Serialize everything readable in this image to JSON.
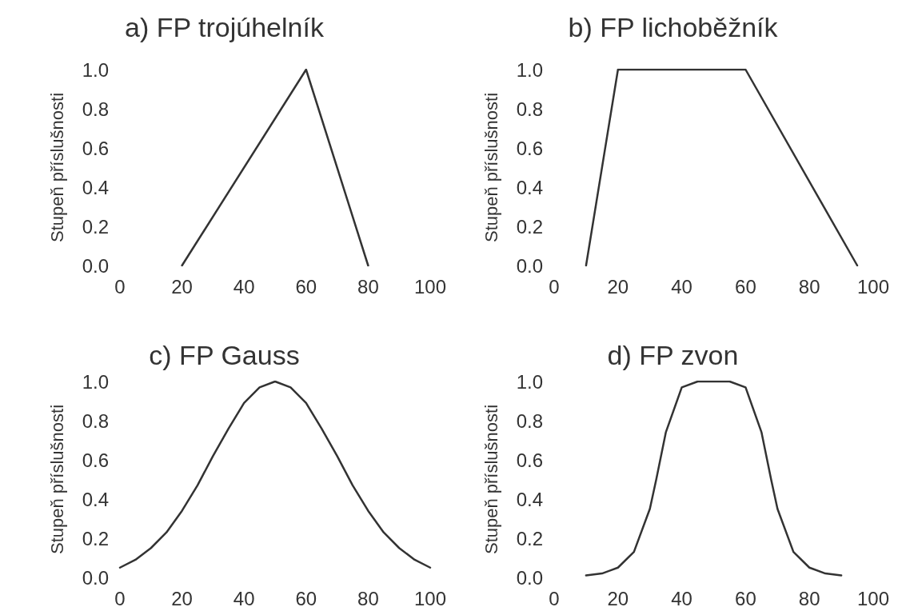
{
  "chart_data": [
    {
      "type": "line",
      "title": "a) FP trojúhelník",
      "ylabel": "Stupeň příslušnosti",
      "xlim": [
        0,
        100
      ],
      "xticks": [
        0,
        20,
        40,
        60,
        80,
        100
      ],
      "ylim": [
        0,
        1
      ],
      "yticks": [
        {
          "value": 0,
          "label": "0.0"
        },
        {
          "value": 0.2,
          "label": "0.2"
        },
        {
          "value": 0.4,
          "label": "0.4"
        },
        {
          "value": 0.6,
          "label": "0.6"
        },
        {
          "value": 0.8,
          "label": "0.8"
        },
        {
          "value": 1,
          "label": "1.0"
        }
      ],
      "grid": false,
      "marker": "none",
      "line_style": "solid",
      "series": [
        {
          "color": "#333333",
          "x": [
            20,
            60,
            80
          ],
          "values": [
            0,
            1,
            0
          ]
        }
      ]
    },
    {
      "type": "line",
      "title": "b) FP lichoběžník",
      "ylabel": "Stupeň příslušnosti",
      "xlim": [
        0,
        100
      ],
      "xticks": [
        0,
        20,
        40,
        60,
        80,
        100
      ],
      "ylim": [
        0,
        1
      ],
      "yticks": [
        {
          "value": 0,
          "label": "0.0"
        },
        {
          "value": 0.2,
          "label": "0.2"
        },
        {
          "value": 0.4,
          "label": "0.4"
        },
        {
          "value": 0.6,
          "label": "0.6"
        },
        {
          "value": 0.8,
          "label": "0.8"
        },
        {
          "value": 1,
          "label": "1.0"
        }
      ],
      "grid": false,
      "marker": "none",
      "line_style": "solid",
      "series": [
        {
          "color": "#333333",
          "x": [
            10,
            20,
            60,
            95
          ],
          "values": [
            0,
            1,
            1,
            0
          ]
        }
      ]
    },
    {
      "type": "line",
      "title": "c) FP Gauss",
      "ylabel": "Stupeň příslušnosti",
      "xlim": [
        0,
        100
      ],
      "xticks": [
        0,
        20,
        40,
        60,
        80,
        100
      ],
      "ylim": [
        0,
        1
      ],
      "yticks": [
        {
          "value": 0,
          "label": "0.0"
        },
        {
          "value": 0.2,
          "label": "0.2"
        },
        {
          "value": 0.4,
          "label": "0.4"
        },
        {
          "value": 0.6,
          "label": "0.6"
        },
        {
          "value": 0.8,
          "label": "0.8"
        },
        {
          "value": 1,
          "label": "1.0"
        }
      ],
      "grid": false,
      "marker": "none",
      "line_style": "solid",
      "series": [
        {
          "color": "#333333",
          "x": [
            0,
            5,
            10,
            15,
            20,
            25,
            30,
            35,
            40,
            45,
            50,
            55,
            60,
            65,
            70,
            75,
            80,
            85,
            90,
            95,
            100
          ],
          "values": [
            0.05,
            0.09,
            0.15,
            0.23,
            0.34,
            0.47,
            0.62,
            0.76,
            0.89,
            0.97,
            1,
            0.97,
            0.89,
            0.76,
            0.62,
            0.47,
            0.34,
            0.23,
            0.15,
            0.09,
            0.05
          ]
        }
      ]
    },
    {
      "type": "line",
      "title": "d) FP zvon",
      "ylabel": "Stupeň příslušnosti",
      "xlim": [
        0,
        100
      ],
      "xticks": [
        0,
        20,
        40,
        60,
        80,
        100
      ],
      "ylim": [
        0,
        1
      ],
      "yticks": [
        {
          "value": 0,
          "label": "0.0"
        },
        {
          "value": 0.2,
          "label": "0.2"
        },
        {
          "value": 0.4,
          "label": "0.4"
        },
        {
          "value": 0.6,
          "label": "0.6"
        },
        {
          "value": 0.8,
          "label": "0.8"
        },
        {
          "value": 1,
          "label": "1.0"
        }
      ],
      "grid": false,
      "marker": "none",
      "line_style": "solid",
      "series": [
        {
          "color": "#333333",
          "x": [
            10,
            15,
            20,
            25,
            30,
            32,
            35,
            40,
            45,
            50,
            55,
            60,
            65,
            68,
            70,
            75,
            80,
            85,
            90
          ],
          "values": [
            0.01,
            0.02,
            0.05,
            0.13,
            0.35,
            0.5,
            0.74,
            0.97,
            1,
            1,
            1,
            0.97,
            0.74,
            0.5,
            0.35,
            0.13,
            0.05,
            0.02,
            0.01
          ]
        }
      ]
    }
  ]
}
